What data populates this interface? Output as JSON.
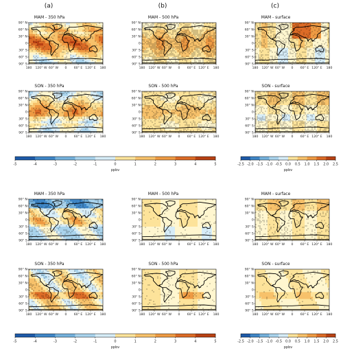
{
  "column_letters": [
    "(a)",
    "(b)",
    "(c)"
  ],
  "map_ticks": {
    "lat": [
      "90° N",
      "60° N",
      "30° N",
      "0",
      "30° S",
      "60° S",
      "90° S"
    ],
    "lon": [
      "180",
      "120° W",
      "60° W",
      "0",
      "60° E",
      "120° E",
      "180"
    ]
  },
  "colors": {
    "diverging": [
      "#1d5aa8",
      "#3f86c6",
      "#74b1dc",
      "#a9d3ec",
      "#d6ecf7",
      "#fff6cf",
      "#fde39a",
      "#f7c16a",
      "#ee9a43",
      "#dc6b26",
      "#b84113"
    ],
    "land_line": "#000000"
  },
  "chart_data": [
    {
      "type": "heatmap",
      "title": "MAM - 350 hPa",
      "group": "top",
      "column": "a",
      "pattern": 0
    },
    {
      "type": "heatmap",
      "title": "MAM - 500 hPa",
      "group": "top",
      "column": "b",
      "pattern": 1
    },
    {
      "type": "heatmap",
      "title": "MAM - surface",
      "group": "top",
      "column": "c",
      "pattern": 2
    },
    {
      "type": "heatmap",
      "title": "SON - 350 hPa",
      "group": "top",
      "column": "a",
      "pattern": 3
    },
    {
      "type": "heatmap",
      "title": "SON - 500 hPa",
      "group": "top",
      "column": "b",
      "pattern": 4
    },
    {
      "type": "heatmap",
      "title": "SON - surface",
      "group": "top",
      "column": "c",
      "pattern": 5
    },
    {
      "type": "heatmap",
      "title": "MAM - 350 hPa",
      "group": "bottom",
      "column": "a",
      "pattern": 6
    },
    {
      "type": "heatmap",
      "title": "MAM - 500 hPa",
      "group": "bottom",
      "column": "b",
      "pattern": 7
    },
    {
      "type": "heatmap",
      "title": "MAM - surface",
      "group": "bottom",
      "column": "c",
      "pattern": 8
    },
    {
      "type": "heatmap",
      "title": "SON - 350 hPa",
      "group": "bottom",
      "column": "a",
      "pattern": 9
    },
    {
      "type": "heatmap",
      "title": "SON - 500 hPa",
      "group": "bottom",
      "column": "b",
      "pattern": 10
    },
    {
      "type": "heatmap",
      "title": "SON - surface",
      "group": "bottom",
      "column": "c",
      "pattern": 11
    }
  ],
  "colorbars": [
    {
      "name": "top-wide",
      "ticks": [
        "-5",
        "-4",
        "-3",
        "-2",
        "-1",
        "0",
        "1",
        "2",
        "3",
        "4",
        "5"
      ],
      "unit": "ppbv",
      "range": [
        -5,
        5
      ]
    },
    {
      "name": "top-surface",
      "ticks": [
        "-2.5",
        "-2.0",
        "-1.5",
        "-1.0",
        "-0.5",
        "0.0",
        "0.5",
        "1.0",
        "1.5",
        "2.0",
        "2.5"
      ],
      "unit": "ppbv",
      "range": [
        -2.5,
        2.5
      ]
    },
    {
      "name": "bottom-wide",
      "ticks": [
        "-5",
        "-4",
        "-3",
        "-2",
        "-1",
        "0",
        "1",
        "2",
        "3",
        "4",
        "5"
      ],
      "unit": "ppbv",
      "range": [
        -5,
        5
      ]
    },
    {
      "name": "bottom-surface",
      "ticks": [
        "-2.5",
        "-2.0",
        "-1.5",
        "-1.0",
        "-0.5",
        "0.0",
        "0.5",
        "1.0",
        "1.5",
        "2.0",
        "2.5"
      ],
      "unit": "ppbv",
      "range": [
        -2.5,
        2.5
      ]
    }
  ]
}
